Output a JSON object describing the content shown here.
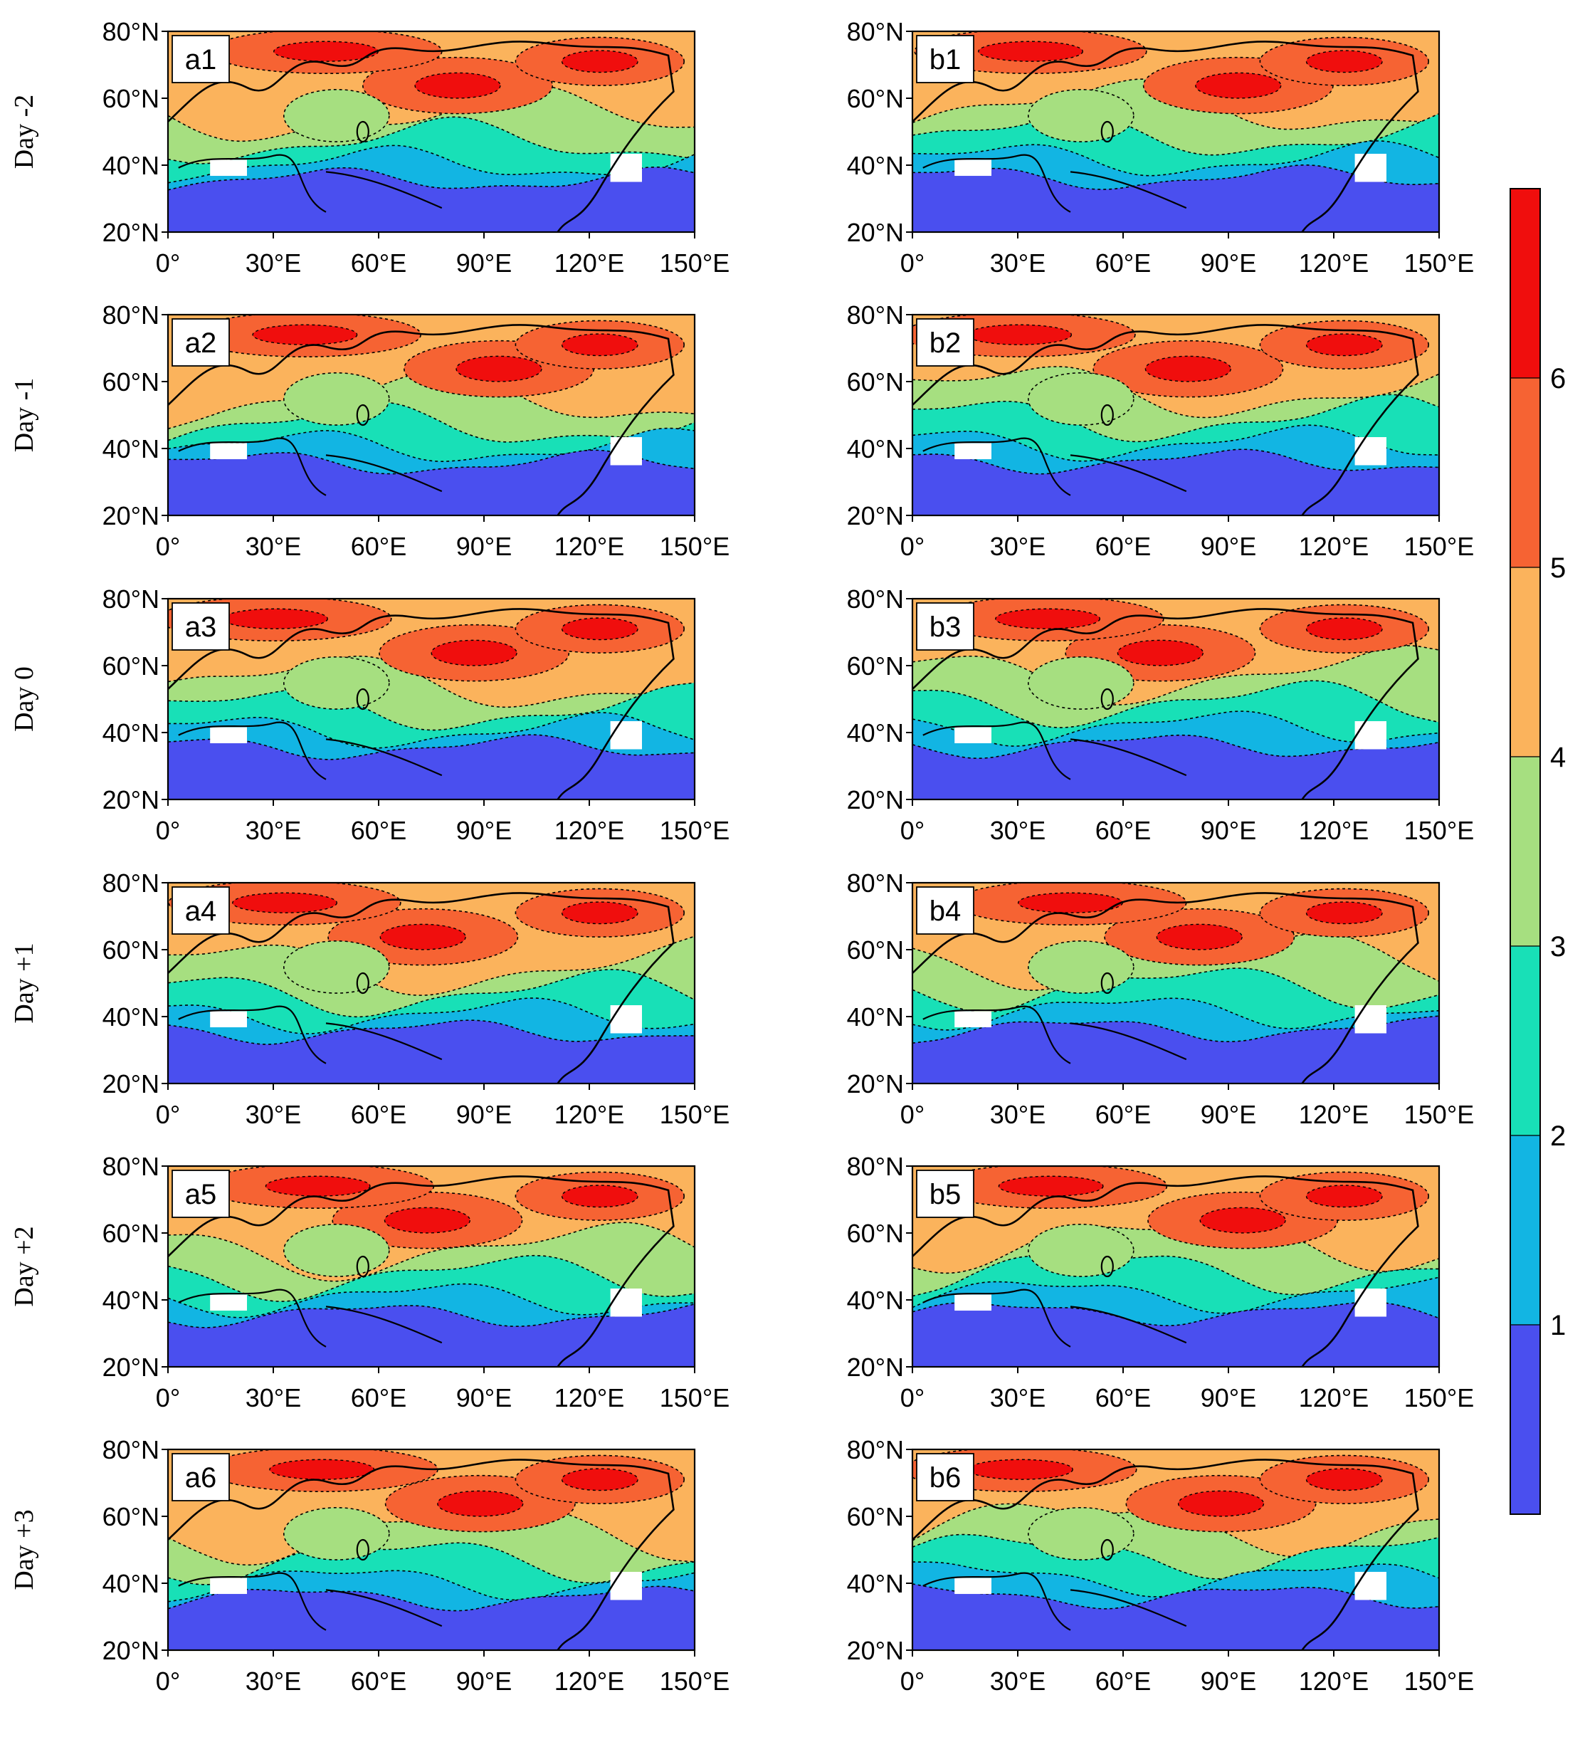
{
  "figure": {
    "colors": {
      "level_0_1": "#4a4fef",
      "level_1_2": "#12b5e3",
      "level_2_3": "#18e0b7",
      "level_3_4": "#a6df80",
      "level_4_5": "#fbb35c",
      "level_5_6": "#f66333",
      "level_6_plus": "#f00e0d",
      "coast": "#000000",
      "missing": "#ffffff",
      "missing_gray": "#c8c8c8"
    },
    "lat_ticks": [
      "20°N",
      "40°N",
      "60°N",
      "80°N"
    ],
    "lon_ticks": [
      "0°",
      "30°E",
      "60°E",
      "90°E",
      "120°E",
      "150°E"
    ],
    "rows": [
      {
        "day": "Day -2",
        "left": "a1",
        "right": "b1"
      },
      {
        "day": "Day -1",
        "left": "a2",
        "right": "b2"
      },
      {
        "day": "Day 0",
        "left": "a3",
        "right": "b3"
      },
      {
        "day": "Day +1",
        "left": "a4",
        "right": "b4"
      },
      {
        "day": "Day +2",
        "left": "a5",
        "right": "b5"
      },
      {
        "day": "Day +3",
        "left": "a6",
        "right": "b6"
      }
    ],
    "colorbar": {
      "labels": [
        "1",
        "2",
        "3",
        "4",
        "5",
        "6"
      ]
    }
  }
}
